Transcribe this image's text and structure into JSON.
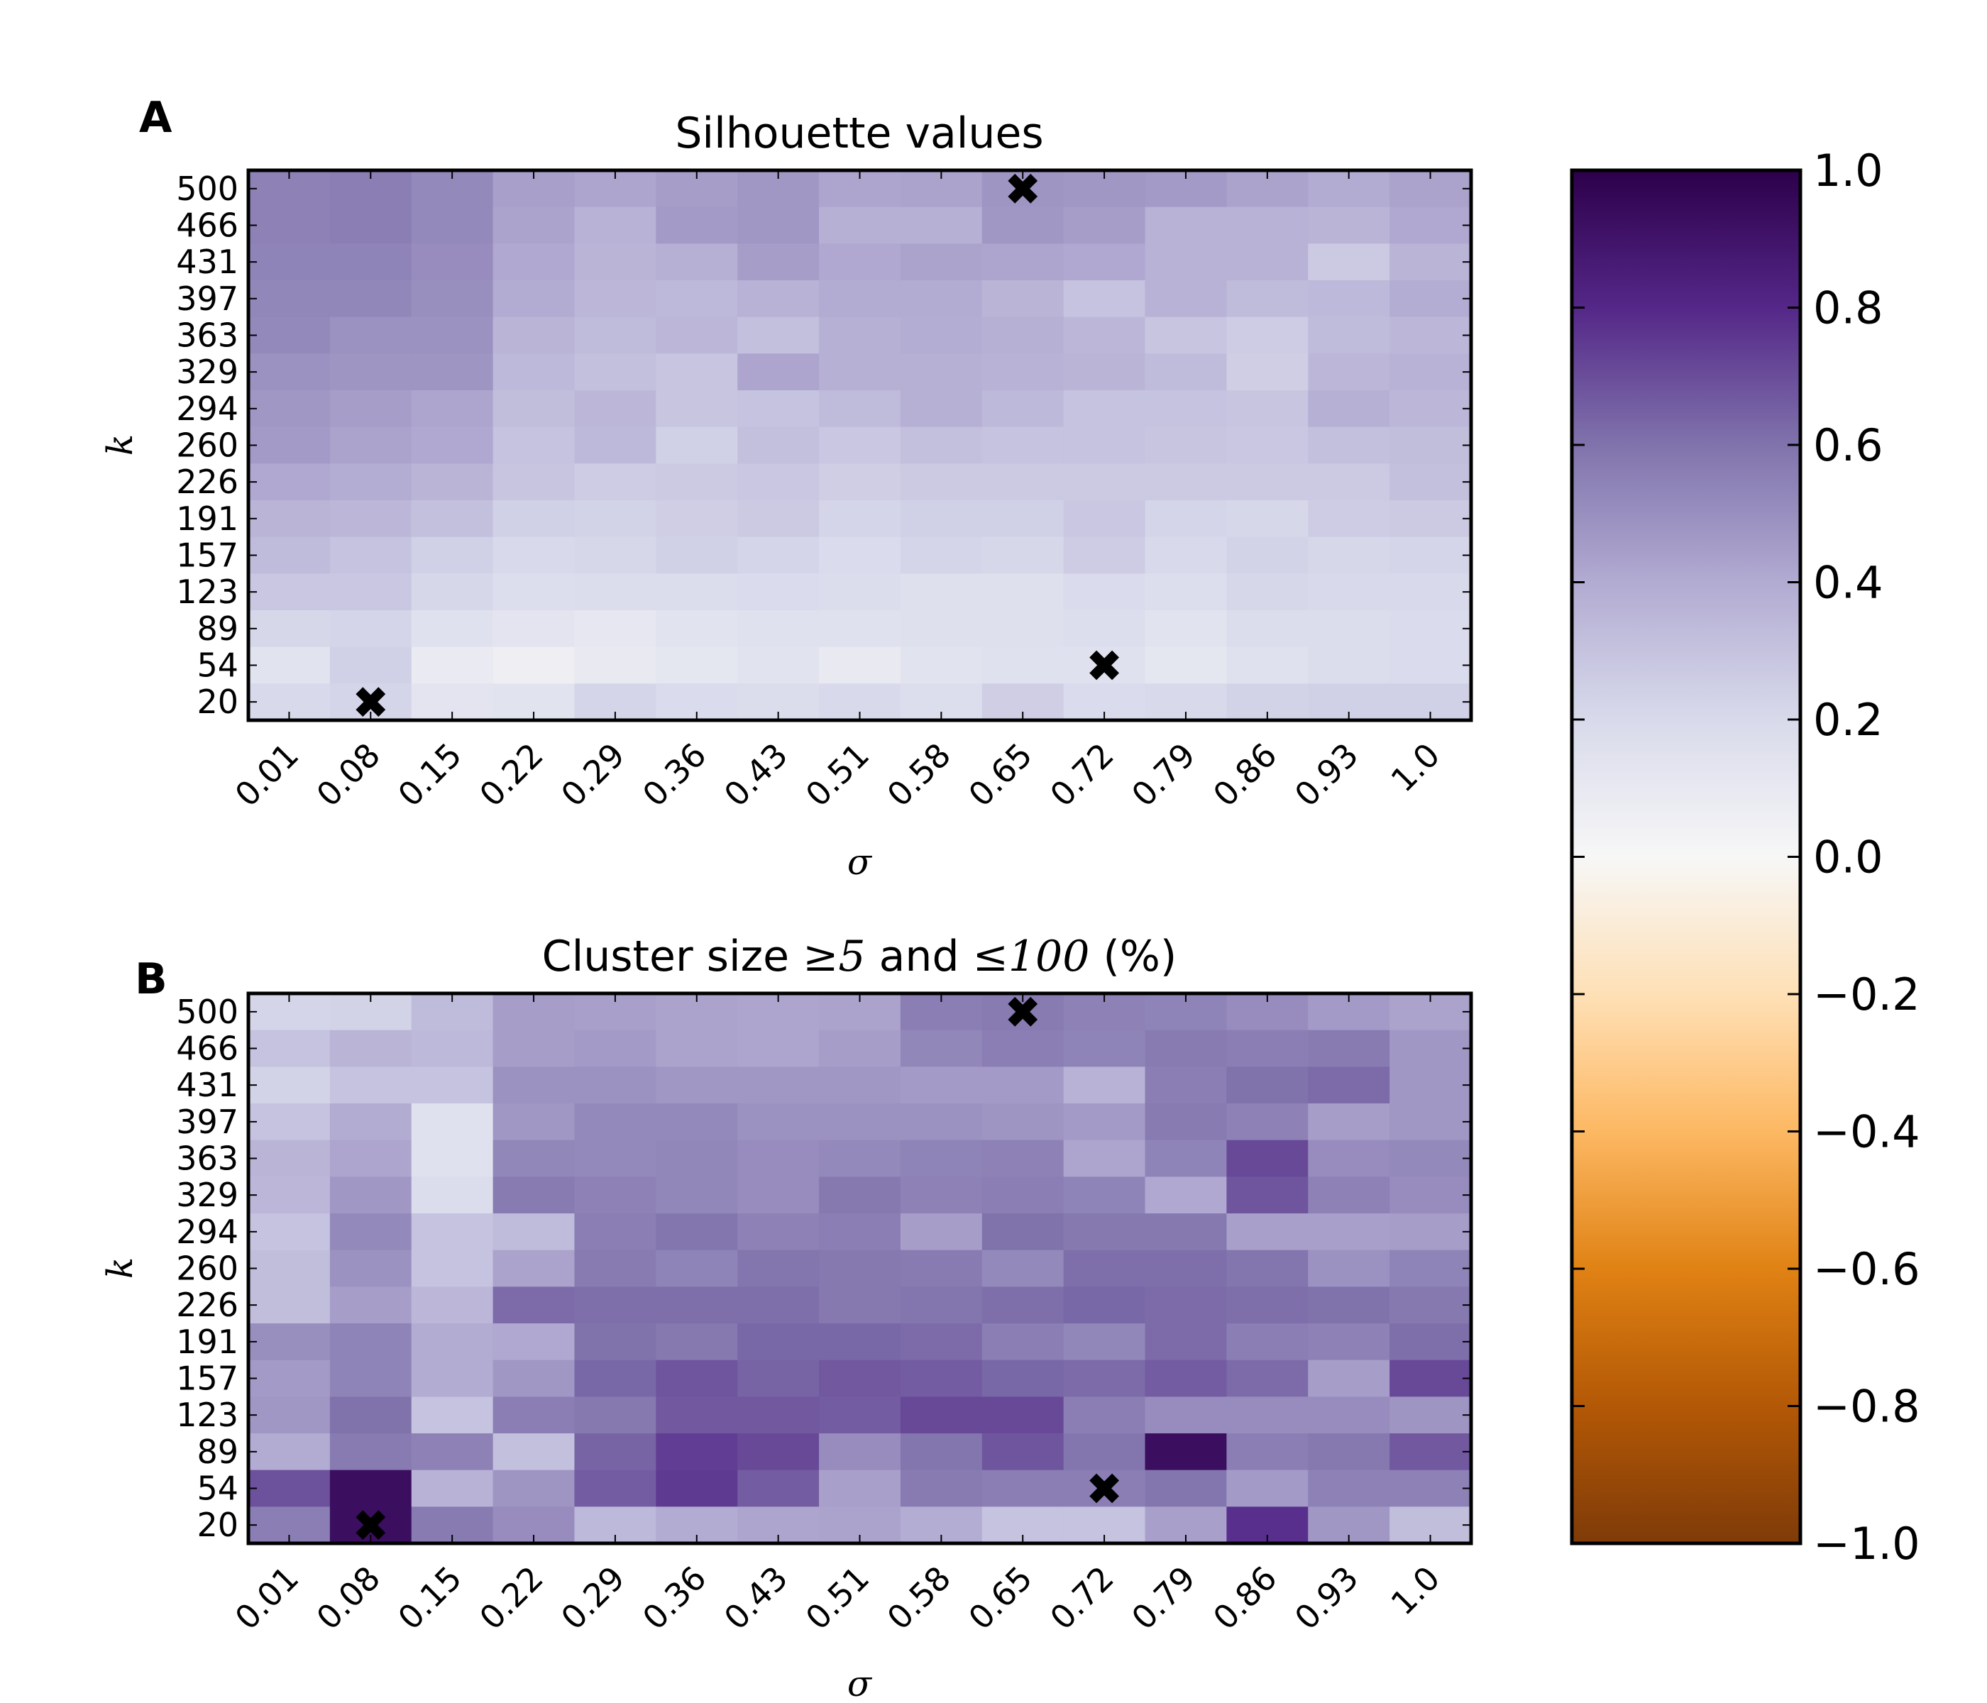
{
  "figure": {
    "panels": [
      {
        "letter": "A",
        "title": "Silhouette values"
      },
      {
        "letter": "B",
        "title_parts": [
          "Cluster size ",
          "≥5",
          " and ",
          "≤100",
          " (%)"
        ]
      }
    ],
    "colorbar": {
      "ticks": [
        "1.0",
        "0.8",
        "0.6",
        "0.4",
        "0.2",
        "0.0",
        "−0.2",
        "−0.4",
        "−0.6",
        "−0.8",
        "−1.0"
      ],
      "vmin": -1.0,
      "vmax": 1.0,
      "cmap": "PuOr"
    },
    "colors": {
      "marker": "#000000",
      "frame": "#000000"
    }
  },
  "chart_data": [
    {
      "type": "heatmap",
      "title": "Silhouette values",
      "xlabel": "σ",
      "ylabel": "k",
      "x_ticks": [
        "0.01",
        "0.08",
        "0.15",
        "0.22",
        "0.29",
        "0.36",
        "0.43",
        "0.51",
        "0.58",
        "0.65",
        "0.72",
        "0.79",
        "0.86",
        "0.93",
        "1.0"
      ],
      "y_ticks": [
        "500",
        "466",
        "431",
        "397",
        "363",
        "329",
        "294",
        "260",
        "226",
        "191",
        "157",
        "123",
        "89",
        "54",
        "20"
      ],
      "values": [
        [
          0.55,
          0.56,
          0.52,
          0.44,
          0.42,
          0.45,
          0.47,
          0.42,
          0.43,
          0.48,
          0.47,
          0.46,
          0.43,
          0.4,
          0.43
        ],
        [
          0.55,
          0.56,
          0.52,
          0.43,
          0.37,
          0.46,
          0.47,
          0.38,
          0.38,
          0.47,
          0.45,
          0.37,
          0.37,
          0.36,
          0.41
        ],
        [
          0.54,
          0.54,
          0.51,
          0.41,
          0.36,
          0.38,
          0.45,
          0.41,
          0.43,
          0.42,
          0.41,
          0.37,
          0.37,
          0.27,
          0.36
        ],
        [
          0.53,
          0.53,
          0.5,
          0.4,
          0.35,
          0.34,
          0.37,
          0.4,
          0.4,
          0.36,
          0.3,
          0.37,
          0.33,
          0.34,
          0.39
        ],
        [
          0.52,
          0.49,
          0.49,
          0.36,
          0.33,
          0.35,
          0.31,
          0.38,
          0.39,
          0.38,
          0.35,
          0.29,
          0.26,
          0.33,
          0.35
        ],
        [
          0.49,
          0.48,
          0.48,
          0.34,
          0.31,
          0.29,
          0.42,
          0.38,
          0.38,
          0.37,
          0.36,
          0.33,
          0.25,
          0.35,
          0.37
        ],
        [
          0.47,
          0.45,
          0.42,
          0.32,
          0.35,
          0.29,
          0.3,
          0.33,
          0.38,
          0.34,
          0.3,
          0.3,
          0.29,
          0.38,
          0.35
        ],
        [
          0.46,
          0.43,
          0.41,
          0.3,
          0.34,
          0.24,
          0.31,
          0.28,
          0.31,
          0.3,
          0.3,
          0.29,
          0.28,
          0.31,
          0.32
        ],
        [
          0.41,
          0.39,
          0.36,
          0.29,
          0.26,
          0.27,
          0.28,
          0.25,
          0.27,
          0.27,
          0.27,
          0.27,
          0.27,
          0.27,
          0.31
        ],
        [
          0.36,
          0.35,
          0.31,
          0.24,
          0.23,
          0.25,
          0.27,
          0.22,
          0.24,
          0.24,
          0.28,
          0.22,
          0.21,
          0.26,
          0.27
        ],
        [
          0.33,
          0.3,
          0.24,
          0.2,
          0.21,
          0.24,
          0.22,
          0.19,
          0.22,
          0.21,
          0.26,
          0.2,
          0.23,
          0.21,
          0.22
        ],
        [
          0.28,
          0.28,
          0.21,
          0.17,
          0.18,
          0.18,
          0.19,
          0.18,
          0.16,
          0.16,
          0.19,
          0.17,
          0.21,
          0.2,
          0.2
        ],
        [
          0.21,
          0.22,
          0.15,
          0.13,
          0.11,
          0.14,
          0.15,
          0.15,
          0.16,
          0.16,
          0.17,
          0.14,
          0.18,
          0.18,
          0.19
        ],
        [
          0.14,
          0.24,
          0.09,
          0.06,
          0.1,
          0.12,
          0.14,
          0.1,
          0.14,
          0.15,
          0.15,
          0.12,
          0.15,
          0.18,
          0.19
        ],
        [
          0.2,
          0.22,
          0.13,
          0.14,
          0.22,
          0.19,
          0.18,
          0.2,
          0.17,
          0.25,
          0.19,
          0.2,
          0.23,
          0.24,
          0.24
        ]
      ],
      "markers": [
        {
          "x": "0.65",
          "y": "500"
        },
        {
          "x": "0.72",
          "y": "54"
        },
        {
          "x": "0.08",
          "y": "20"
        }
      ],
      "vmin": -1.0,
      "vmax": 1.0,
      "colorbar_ticks": [
        1.0,
        0.8,
        0.6,
        0.4,
        0.2,
        0.0,
        -0.2,
        -0.4,
        -0.6,
        -0.8,
        -1.0
      ]
    },
    {
      "type": "heatmap",
      "title": "Cluster size ≥5 and ≤100 (%)",
      "xlabel": "σ",
      "ylabel": "k",
      "x_ticks": [
        "0.01",
        "0.08",
        "0.15",
        "0.22",
        "0.29",
        "0.36",
        "0.43",
        "0.51",
        "0.58",
        "0.65",
        "0.72",
        "0.79",
        "0.86",
        "0.93",
        "1.0"
      ],
      "y_ticks": [
        "500",
        "466",
        "431",
        "397",
        "363",
        "329",
        "294",
        "260",
        "226",
        "191",
        "157",
        "123",
        "89",
        "54",
        "20"
      ],
      "values": [
        [
          0.22,
          0.23,
          0.33,
          0.45,
          0.44,
          0.43,
          0.42,
          0.43,
          0.56,
          0.57,
          0.55,
          0.54,
          0.51,
          0.46,
          0.43
        ],
        [
          0.3,
          0.36,
          0.34,
          0.45,
          0.46,
          0.43,
          0.42,
          0.45,
          0.53,
          0.56,
          0.54,
          0.57,
          0.56,
          0.57,
          0.47
        ],
        [
          0.23,
          0.3,
          0.3,
          0.49,
          0.49,
          0.47,
          0.47,
          0.47,
          0.46,
          0.46,
          0.37,
          0.56,
          0.6,
          0.62,
          0.47
        ],
        [
          0.3,
          0.4,
          0.15,
          0.47,
          0.52,
          0.52,
          0.49,
          0.49,
          0.49,
          0.48,
          0.46,
          0.57,
          0.55,
          0.45,
          0.47
        ],
        [
          0.36,
          0.42,
          0.15,
          0.53,
          0.52,
          0.53,
          0.51,
          0.52,
          0.54,
          0.55,
          0.42,
          0.54,
          0.71,
          0.51,
          0.52
        ],
        [
          0.35,
          0.47,
          0.18,
          0.57,
          0.55,
          0.53,
          0.51,
          0.58,
          0.55,
          0.56,
          0.54,
          0.41,
          0.68,
          0.55,
          0.51
        ],
        [
          0.3,
          0.52,
          0.3,
          0.33,
          0.56,
          0.59,
          0.55,
          0.56,
          0.45,
          0.6,
          0.58,
          0.58,
          0.44,
          0.44,
          0.45
        ],
        [
          0.32,
          0.49,
          0.3,
          0.43,
          0.57,
          0.54,
          0.59,
          0.58,
          0.57,
          0.52,
          0.61,
          0.61,
          0.59,
          0.49,
          0.54
        ],
        [
          0.32,
          0.45,
          0.35,
          0.62,
          0.61,
          0.61,
          0.61,
          0.58,
          0.59,
          0.61,
          0.63,
          0.62,
          0.61,
          0.6,
          0.58
        ],
        [
          0.5,
          0.54,
          0.4,
          0.41,
          0.6,
          0.58,
          0.63,
          0.63,
          0.62,
          0.56,
          0.53,
          0.62,
          0.56,
          0.55,
          0.61
        ],
        [
          0.46,
          0.54,
          0.4,
          0.47,
          0.63,
          0.68,
          0.64,
          0.67,
          0.66,
          0.63,
          0.62,
          0.66,
          0.62,
          0.45,
          0.71
        ],
        [
          0.47,
          0.6,
          0.3,
          0.56,
          0.58,
          0.67,
          0.67,
          0.66,
          0.71,
          0.71,
          0.56,
          0.51,
          0.51,
          0.51,
          0.48
        ],
        [
          0.4,
          0.57,
          0.55,
          0.31,
          0.64,
          0.74,
          0.71,
          0.51,
          0.59,
          0.68,
          0.59,
          0.93,
          0.56,
          0.58,
          0.67
        ],
        [
          0.69,
          0.93,
          0.37,
          0.48,
          0.66,
          0.75,
          0.66,
          0.44,
          0.57,
          0.56,
          0.56,
          0.59,
          0.46,
          0.55,
          0.55
        ],
        [
          0.56,
          0.93,
          0.57,
          0.51,
          0.34,
          0.4,
          0.42,
          0.43,
          0.39,
          0.3,
          0.3,
          0.44,
          0.78,
          0.47,
          0.32
        ]
      ],
      "markers": [
        {
          "x": "0.65",
          "y": "500"
        },
        {
          "x": "0.72",
          "y": "54"
        },
        {
          "x": "0.08",
          "y": "20"
        }
      ],
      "vmin": -1.0,
      "vmax": 1.0,
      "colorbar_ticks": [
        1.0,
        0.8,
        0.6,
        0.4,
        0.2,
        0.0,
        -0.2,
        -0.4,
        -0.6,
        -0.8,
        -1.0
      ]
    }
  ]
}
